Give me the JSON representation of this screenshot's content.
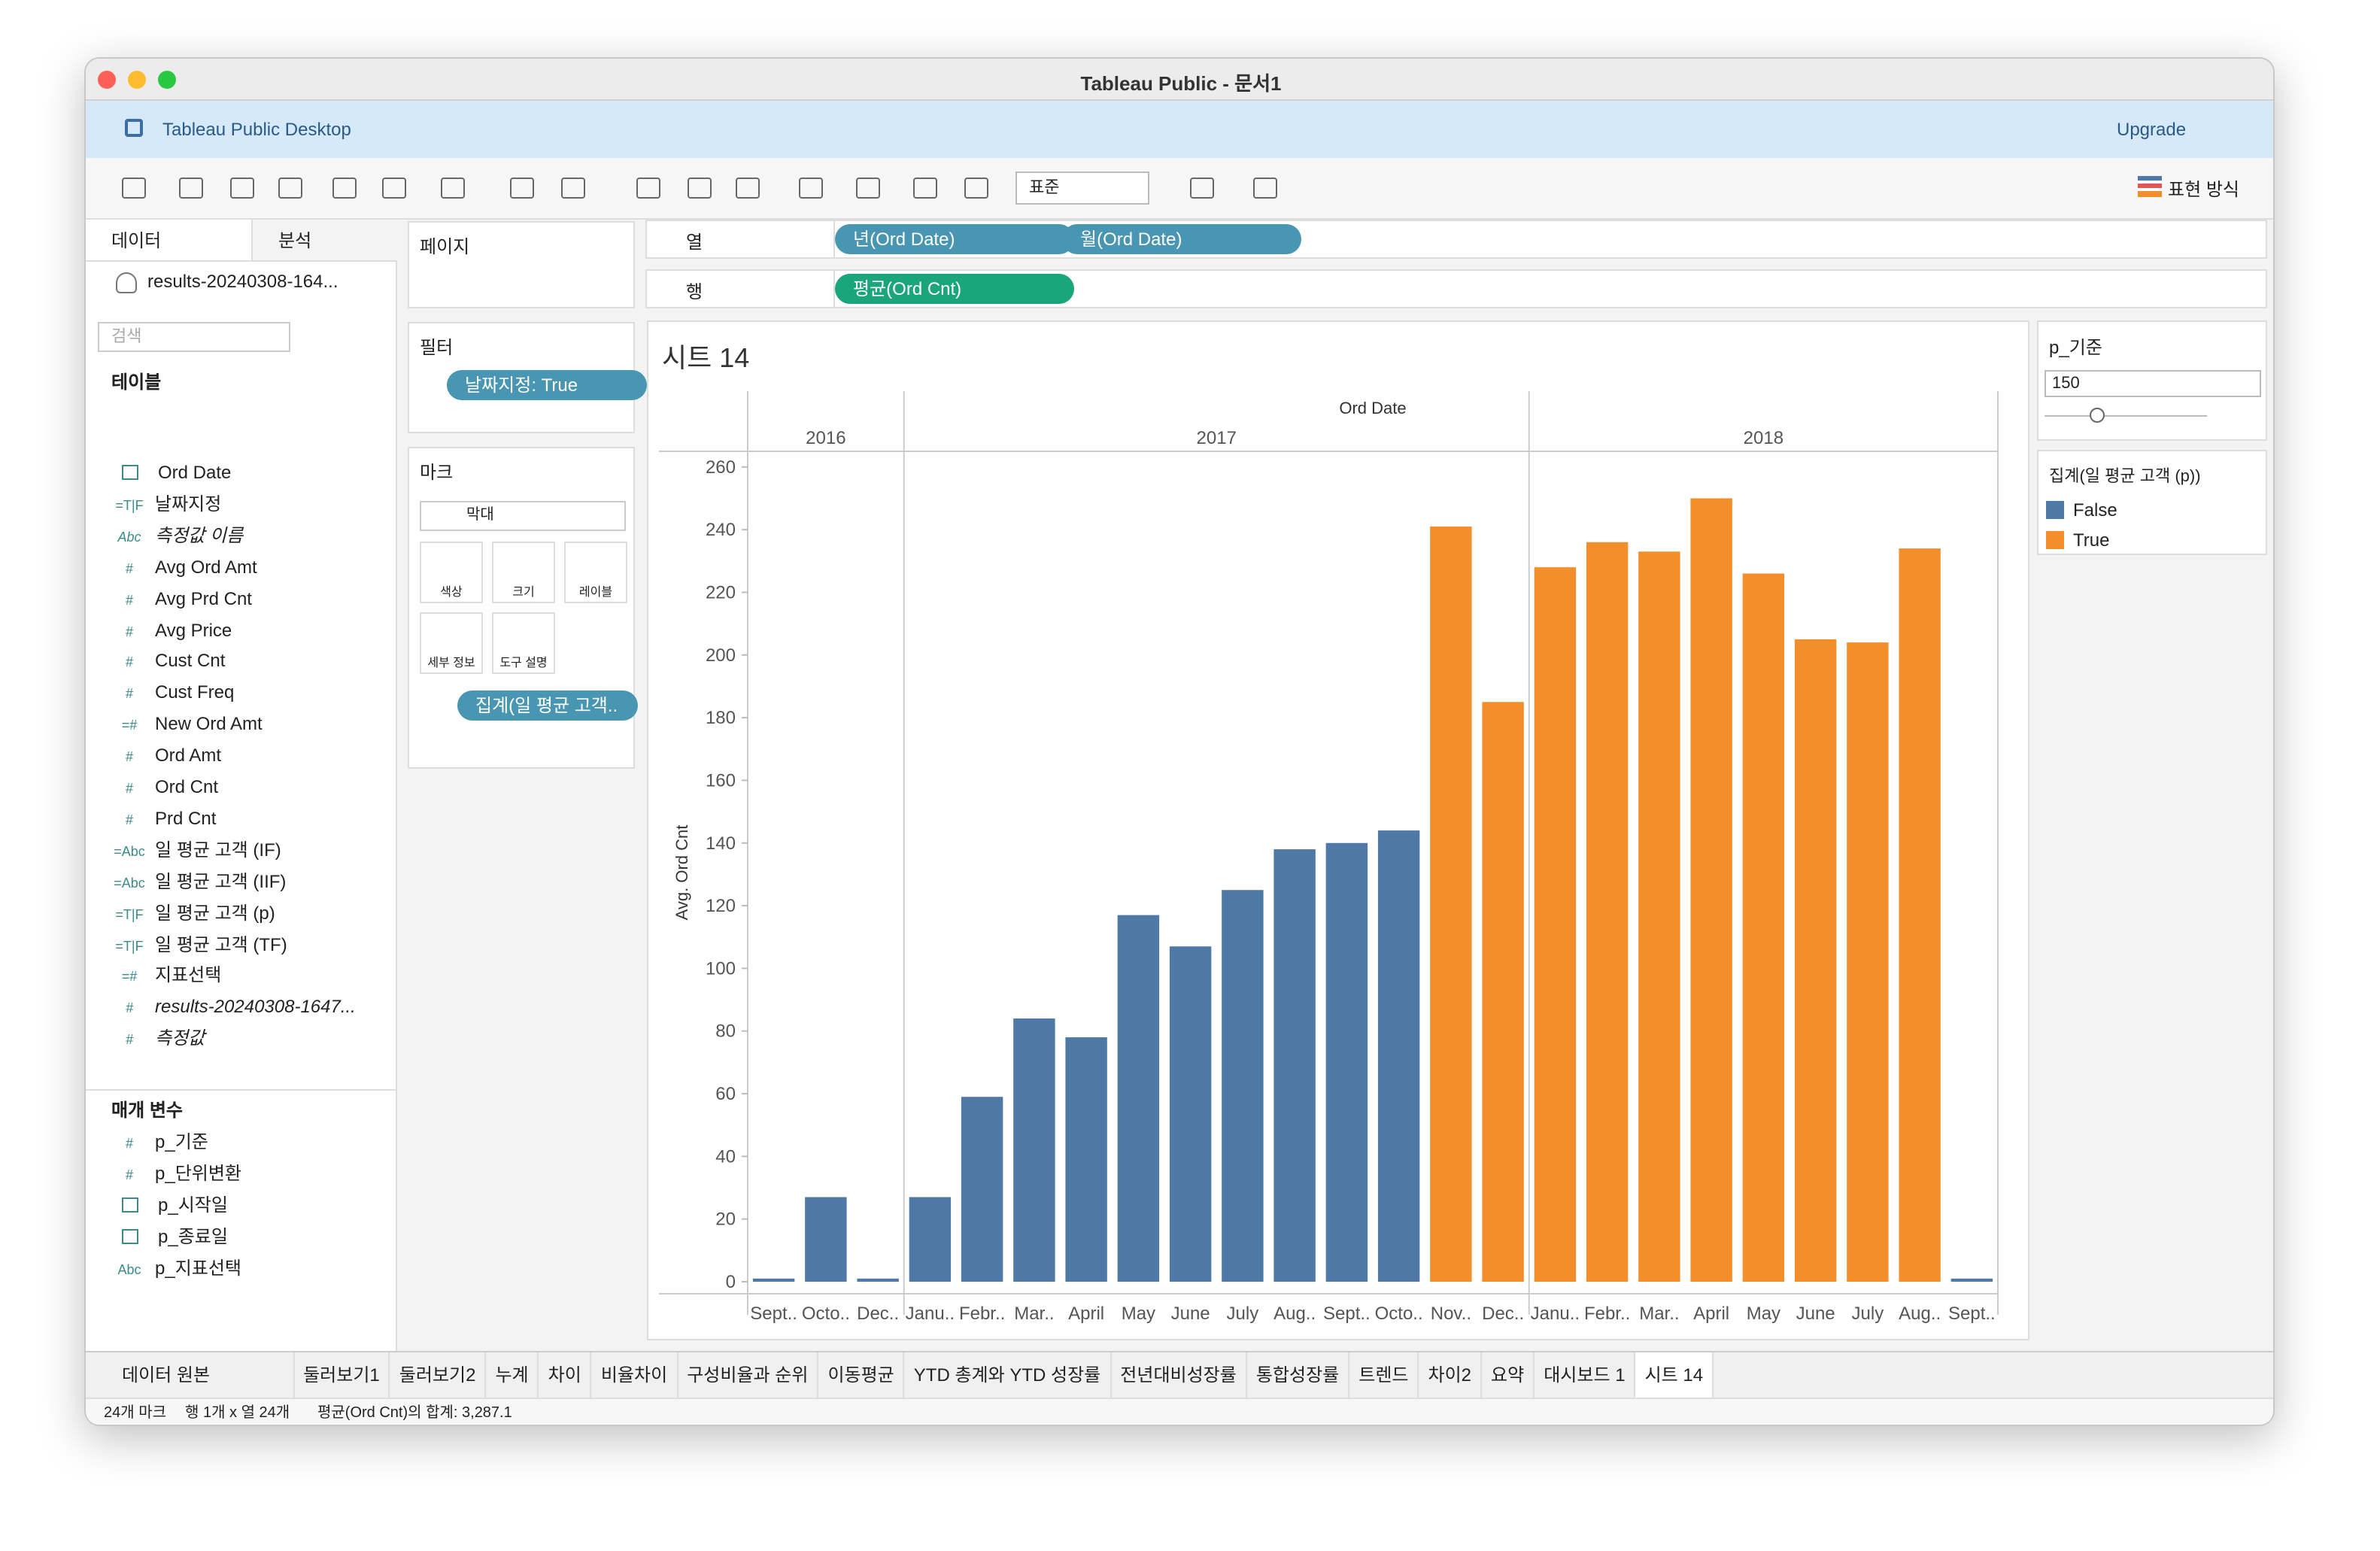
{
  "window": {
    "title": "Tableau Public - 문서1"
  },
  "banner": {
    "product": "Tableau Public Desktop",
    "upgrade": "Upgrade"
  },
  "toolbar": {
    "fit": "표준",
    "show_me": "표현 방식"
  },
  "sidebar": {
    "tabs": [
      "데이터",
      "분석"
    ],
    "source": "results-20240308-164...",
    "search": "검색",
    "tables_heading": "테이블",
    "fields": [
      {
        "name": "Ord Date"
      },
      {
        "icon": "=T|F",
        "name": "날짜지정"
      },
      {
        "icon": "Abc",
        "name": "측정값 이름",
        "italic": true
      },
      {
        "icon": "#",
        "name": "Avg Ord Amt"
      },
      {
        "icon": "#",
        "name": "Avg Prd Cnt"
      },
      {
        "icon": "#",
        "name": "Avg Price"
      },
      {
        "icon": "#",
        "name": "Cust Cnt"
      },
      {
        "icon": "#",
        "name": "Cust Freq"
      },
      {
        "icon": "=#",
        "name": "New Ord Amt"
      },
      {
        "icon": "#",
        "name": "Ord Amt"
      },
      {
        "icon": "#",
        "name": "Ord Cnt"
      },
      {
        "icon": "#",
        "name": "Prd Cnt"
      },
      {
        "icon": "=Abc",
        "name": "일 평균 고객 (IF)"
      },
      {
        "icon": "=Abc",
        "name": "일 평균 고객 (IIF)"
      },
      {
        "icon": "=T|F",
        "name": "일 평균 고객 (p)"
      },
      {
        "icon": "=T|F",
        "name": "일 평균 고객 (TF)"
      },
      {
        "icon": "=#",
        "name": "지표선택"
      },
      {
        "icon": "#",
        "name": "results-20240308-1647...",
        "italic": true
      },
      {
        "icon": "#",
        "name": "측정값",
        "italic": true
      }
    ],
    "params_heading": "매개 변수",
    "params": [
      {
        "icon": "#",
        "name": "p_기준"
      },
      {
        "icon": "#",
        "name": "p_단위변환"
      },
      {
        "name": "p_시작일"
      },
      {
        "name": "p_종료일"
      },
      {
        "icon": "Abc",
        "name": "p_지표선택"
      }
    ]
  },
  "cards": {
    "pages": "페이지",
    "filters": "필터",
    "filter_pill": "날짜지정: True",
    "marks": "마크",
    "mark_type": "막대",
    "mark_buttons": [
      "색상",
      "크기",
      "레이블",
      "세부 정보",
      "도구 설명"
    ],
    "mark_pill": "집계(일 평균 고객.."
  },
  "shelves": {
    "columns_label": "열",
    "rows_label": "행",
    "columns": [
      "년(Ord Date)",
      "월(Ord Date)"
    ],
    "rows": [
      "평균(Ord Cnt)"
    ]
  },
  "param_card": {
    "title": "p_기준",
    "value": 150
  },
  "chart_data": {
    "type": "bar",
    "title": "시트 14",
    "header": "Ord Date",
    "y_label": "Avg. Ord Cnt",
    "years": [
      {
        "label": "2016",
        "span": 3
      },
      {
        "label": "2017",
        "span": 12
      },
      {
        "label": "2018",
        "span": 9
      }
    ],
    "categories": [
      "Sept..",
      "Octo..",
      "Dec..",
      "Janu..",
      "Febr..",
      "Mar..",
      "April",
      "May",
      "June",
      "July",
      "Aug..",
      "Sept..",
      "Octo..",
      "Nov..",
      "Dec..",
      "Janu..",
      "Febr..",
      "Mar..",
      "April",
      "May",
      "June",
      "July",
      "Aug..",
      "Sept.."
    ],
    "values": [
      1,
      27,
      1,
      27,
      59,
      84,
      78,
      117,
      107,
      125,
      138,
      140,
      144,
      241,
      185,
      228,
      236,
      233,
      250,
      226,
      205,
      204,
      234,
      1
    ],
    "ylim": [
      0,
      265
    ],
    "yticks": [
      0,
      20,
      40,
      60,
      80,
      100,
      120,
      140,
      160,
      180,
      200,
      220,
      240,
      260
    ],
    "legend_title": "집계(일 평균 고객 (p))",
    "legend": [
      {
        "name": "False",
        "color": "#4e79a7"
      },
      {
        "name": "True",
        "color": "#f28e2b"
      }
    ]
  },
  "sheet_tabs": {
    "source": "데이터 원본",
    "tabs": [
      "둘러보기1",
      "둘러보기2",
      "누계",
      "차이",
      "비율차이",
      "구성비율과 순위",
      "이동평균",
      "YTD 총계와 YTD 성장률",
      "전년대비성장률",
      "통합성장률",
      "트렌드",
      "차이2",
      "요약",
      "대시보드 1",
      "시트 14"
    ]
  },
  "status": [
    "24개 마크",
    "행 1개 x 열 24개",
    "평균(Ord Cnt)의 합계: 3,287.1"
  ]
}
